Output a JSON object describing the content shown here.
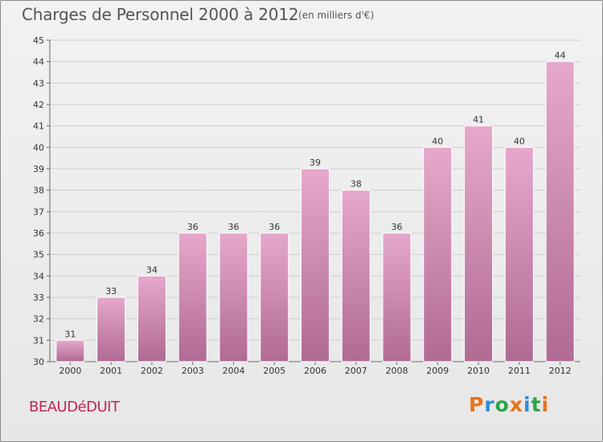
{
  "header": {
    "title": "Charges de Personnel 2000 à 2012",
    "unit": "(en milliers d'€)"
  },
  "footer": {
    "commune": "BEAUDéDUIT",
    "brand": "Proxiti",
    "brand_colors": [
      "#e8731a",
      "#2b8fd6",
      "#2aa748",
      "#e8731a",
      "#2b8fd6",
      "#2aa748",
      "#e8731a"
    ]
  },
  "colors": {
    "bar_top": "#e6a8cc",
    "bar_bottom": "#b06a93",
    "commune": "#c2255c"
  },
  "chart_data": {
    "type": "bar",
    "title": "Charges de Personnel 2000 à 2012",
    "subtitle": "(en milliers d'€)",
    "xlabel": "",
    "ylabel": "",
    "categories": [
      "2000",
      "2001",
      "2002",
      "2003",
      "2004",
      "2005",
      "2006",
      "2007",
      "2008",
      "2009",
      "2010",
      "2011",
      "2012"
    ],
    "values": [
      31,
      33,
      34,
      36,
      36,
      36,
      39,
      38,
      36,
      40,
      41,
      40,
      44
    ],
    "ylim": [
      30,
      45
    ],
    "yticks": [
      30,
      31,
      32,
      33,
      34,
      35,
      36,
      37,
      38,
      39,
      40,
      41,
      42,
      43,
      44,
      45
    ],
    "grid": true,
    "legend": "none"
  }
}
